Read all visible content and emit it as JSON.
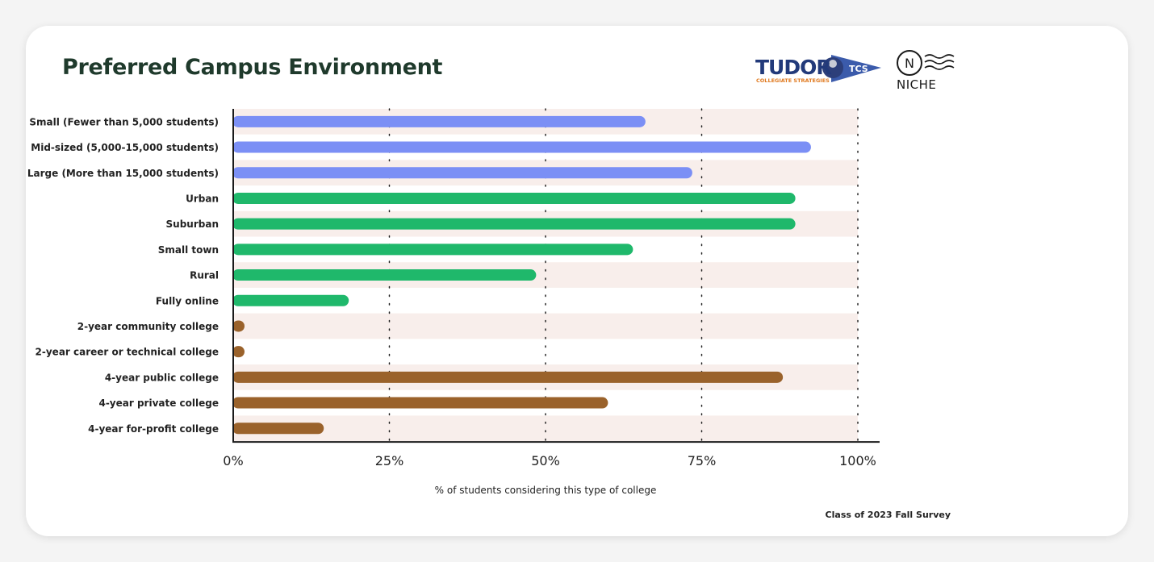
{
  "title": "Preferred Campus Environment",
  "logos": {
    "tudor_word": "TUDOR",
    "tudor_sub": "COLLEGIATE STRATEGIES",
    "tudor_badge": "TCS",
    "niche_mark": "N",
    "niche_word": "NICHE"
  },
  "footnote": "Class of 2023 Fall Survey",
  "colors": {
    "size": "#7b8ff5",
    "location": "#1fb86b",
    "type": "#9a622b",
    "band": "#f8eeeb",
    "axis": "#1a1a1a",
    "title": "#1f3a2c"
  },
  "chart_data": {
    "type": "bar",
    "orientation": "horizontal",
    "categories": [
      "Small (Fewer than 5,000 students)",
      "Mid-sized (5,000-15,000 students)",
      "Large (More than 15,000 students)",
      "Urban",
      "Suburban",
      "Small town",
      "Rural",
      "Fully online",
      "2-year community college",
      "2-year career or technical college",
      "4-year public college",
      "4-year private college",
      "4-year for-profit college"
    ],
    "values": [
      66,
      92.5,
      73.5,
      90,
      90,
      64,
      48.5,
      18.5,
      1.5,
      1.5,
      88,
      60,
      14.5
    ],
    "groups": [
      "size",
      "size",
      "size",
      "location",
      "location",
      "location",
      "location",
      "location",
      "type",
      "type",
      "type",
      "type",
      "type"
    ],
    "xlim": [
      0,
      100
    ],
    "xticks": [
      0,
      25,
      50,
      75,
      100
    ],
    "xtick_labels": [
      "0%",
      "25%",
      "50%",
      "75%",
      "100%"
    ],
    "xlabel": "% of students considering this type of college",
    "ylabel": "",
    "grid": "vertical dotted",
    "legend": "none"
  }
}
